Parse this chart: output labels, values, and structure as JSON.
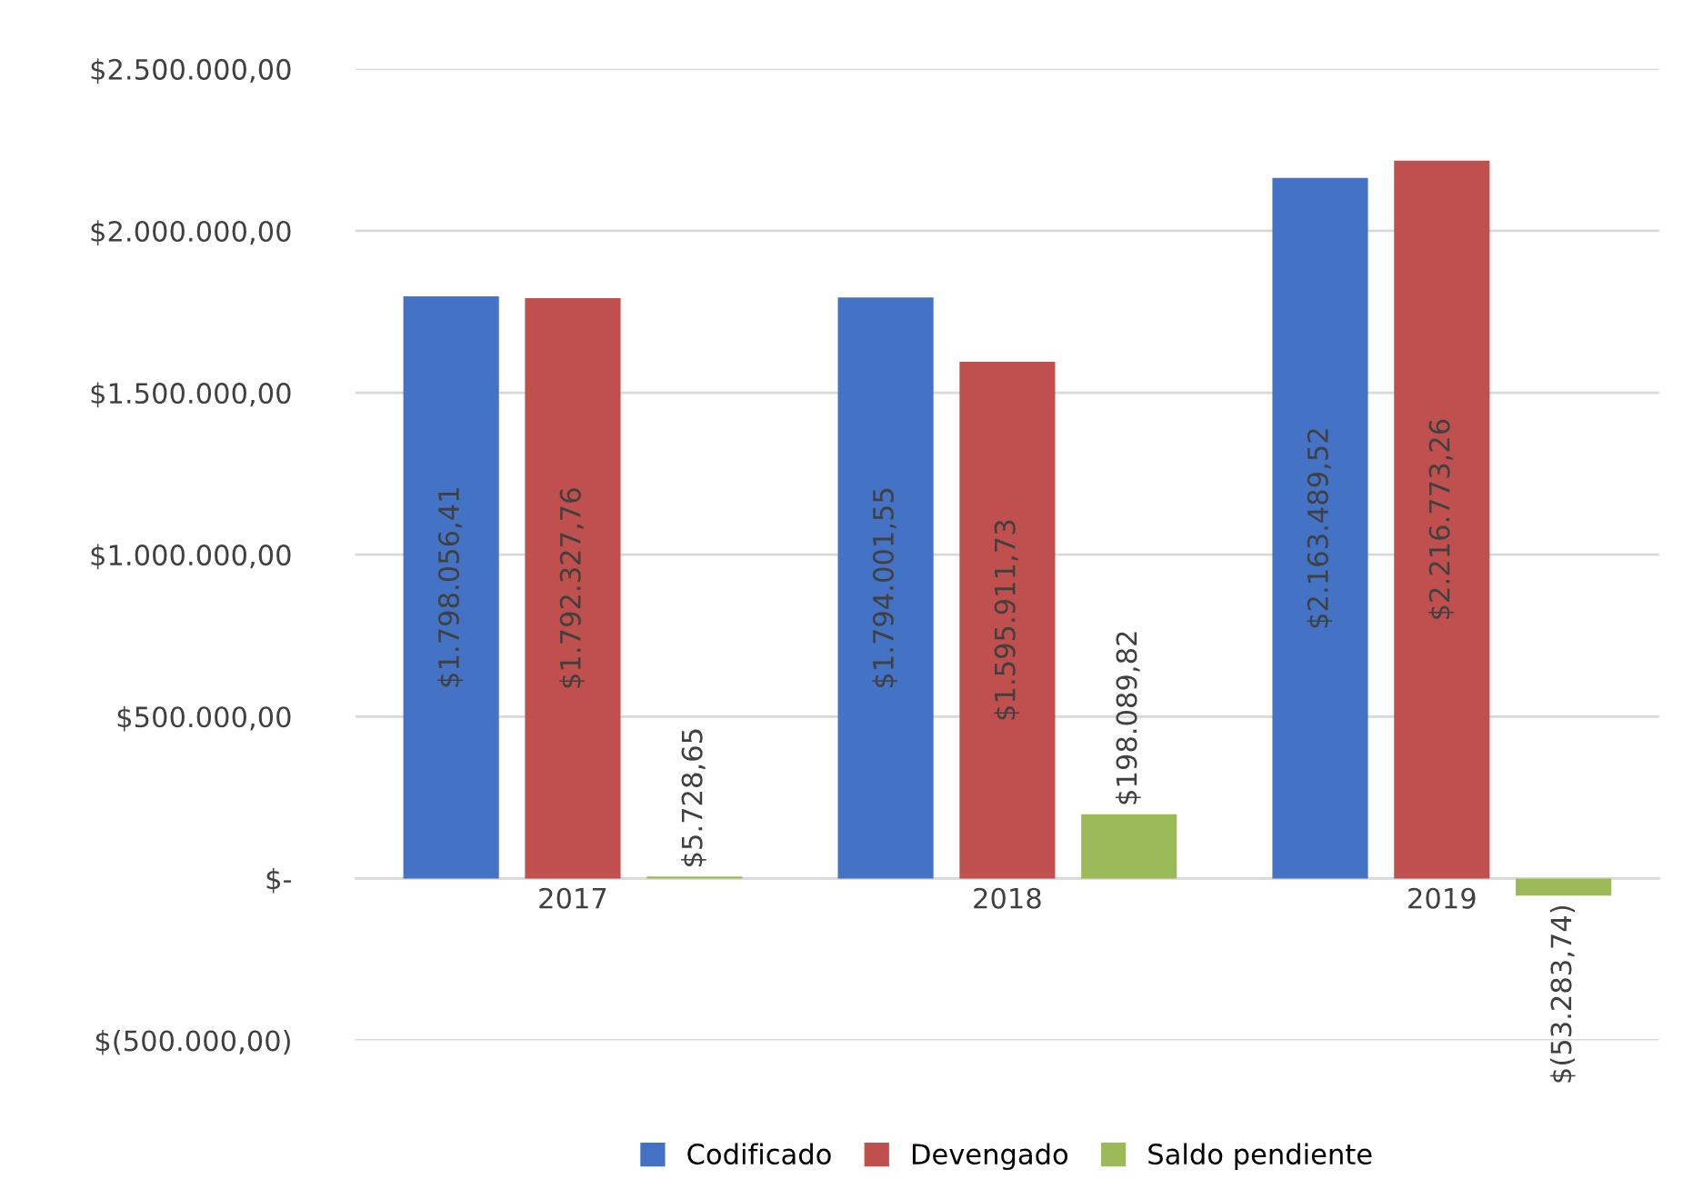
{
  "chart_data": {
    "type": "bar",
    "categories": [
      "2017",
      "2018",
      "2019"
    ],
    "series": [
      {
        "name": "Codificado",
        "color": "#4472c4",
        "values": [
          1798056.41,
          1794001.55,
          2163489.52
        ],
        "value_labels": [
          "$1.798.056,41",
          "$1.794.001,55",
          "$2.163.489,52"
        ]
      },
      {
        "name": "Devengado",
        "color": "#c0504d",
        "values": [
          1792327.76,
          1595911.73,
          2216773.26
        ],
        "value_labels": [
          "$1.792.327,76",
          "$1.595.911,73",
          "$2.216.773,26"
        ]
      },
      {
        "name": "Saldo pendiente",
        "color": "#9bbb59",
        "values": [
          5728.65,
          198089.82,
          -53283.74
        ],
        "value_labels": [
          "$5.728,65",
          "$198.089,82",
          "$(53.283,74)"
        ]
      }
    ],
    "ylim": [
      -500000,
      2500000
    ],
    "yticks": [
      {
        "value": -500000,
        "label": "$(500.000,00)"
      },
      {
        "value": 0,
        "label": "$-"
      },
      {
        "value": 500000,
        "label": "$500.000,00"
      },
      {
        "value": 1000000,
        "label": "$1.000.000,00"
      },
      {
        "value": 1500000,
        "label": "$1.500.000,00"
      },
      {
        "value": 2000000,
        "label": "$2.000.000,00"
      },
      {
        "value": 2500000,
        "label": "$2.500.000,00"
      }
    ],
    "grid": "y",
    "legend": "bottom"
  }
}
